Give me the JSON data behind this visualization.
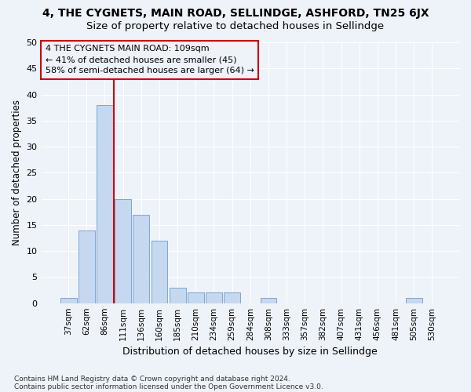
{
  "title": "4, THE CYGNETS, MAIN ROAD, SELLINDGE, ASHFORD, TN25 6JX",
  "subtitle": "Size of property relative to detached houses in Sellindge",
  "xlabel": "Distribution of detached houses by size in Sellindge",
  "ylabel": "Number of detached properties",
  "bin_labels": [
    "37sqm",
    "62sqm",
    "86sqm",
    "111sqm",
    "136sqm",
    "160sqm",
    "185sqm",
    "210sqm",
    "234sqm",
    "259sqm",
    "284sqm",
    "308sqm",
    "333sqm",
    "357sqm",
    "382sqm",
    "407sqm",
    "431sqm",
    "456sqm",
    "481sqm",
    "505sqm",
    "530sqm"
  ],
  "bar_values": [
    1,
    14,
    38,
    20,
    17,
    12,
    3,
    2,
    2,
    2,
    0,
    1,
    0,
    0,
    0,
    0,
    0,
    0,
    0,
    1,
    0
  ],
  "bar_color": "#c5d8ef",
  "bar_edgecolor": "#7aa8d2",
  "vline_index": 2.5,
  "vline_color": "#cc0000",
  "ylim": [
    0,
    50
  ],
  "yticks": [
    0,
    5,
    10,
    15,
    20,
    25,
    30,
    35,
    40,
    45,
    50
  ],
  "annotation_line1": "4 THE CYGNETS MAIN ROAD: 109sqm",
  "annotation_line2": "← 41% of detached houses are smaller (45)",
  "annotation_line3": "58% of semi-detached houses are larger (64) →",
  "annotation_box_color": "#cc0000",
  "footer_line1": "Contains HM Land Registry data © Crown copyright and database right 2024.",
  "footer_line2": "Contains public sector information licensed under the Open Government Licence v3.0.",
  "background_color": "#eef2f9",
  "grid_color": "#ffffff",
  "title_fontsize": 10,
  "subtitle_fontsize": 9.5,
  "ylabel_fontsize": 8.5,
  "xlabel_fontsize": 9,
  "tick_fontsize": 7.5,
  "ytick_fontsize": 8,
  "footer_fontsize": 6.5,
  "annot_fontsize": 8
}
